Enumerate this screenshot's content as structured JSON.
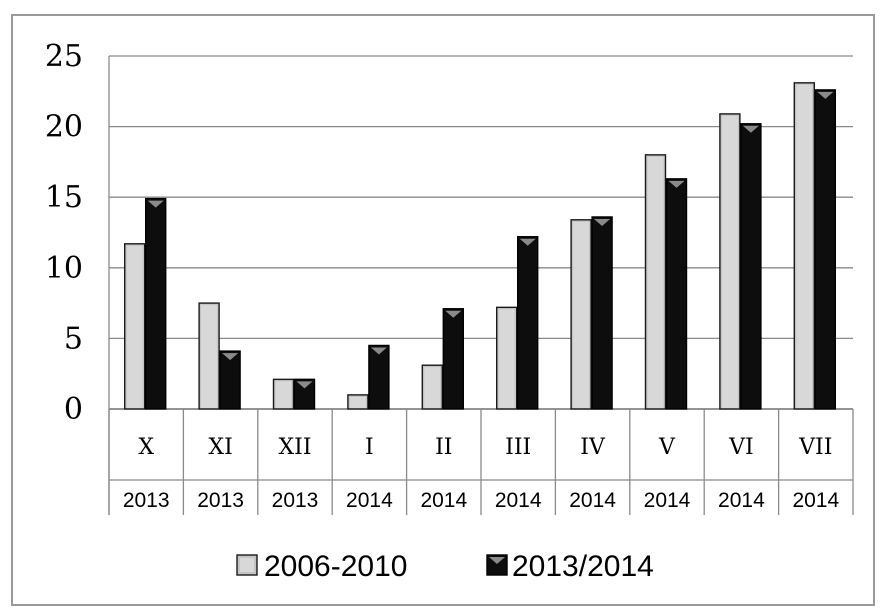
{
  "chart_data": {
    "type": "bar",
    "categories": [
      "X",
      "XI",
      "XII",
      "I",
      "II",
      "III",
      "IV",
      "V",
      "VI",
      "VII"
    ],
    "category_years": [
      "2013",
      "2013",
      "2013",
      "2014",
      "2014",
      "2014",
      "2014",
      "2014",
      "2014",
      "2014"
    ],
    "series": [
      {
        "name": "2006-2010",
        "color": "#c0c0c0",
        "values": [
          11.7,
          7.5,
          2.1,
          1.0,
          3.1,
          7.2,
          13.4,
          18.0,
          20.9,
          23.1
        ]
      },
      {
        "name": "2013/2014",
        "color": "#111111",
        "values": [
          14.9,
          4.1,
          2.1,
          4.5,
          7.1,
          12.2,
          13.6,
          16.3,
          20.2,
          22.6
        ]
      }
    ],
    "ylim": [
      0,
      25
    ],
    "yticks": [
      0,
      5,
      10,
      15,
      20,
      25
    ],
    "grid": true,
    "legend": "bottom"
  }
}
